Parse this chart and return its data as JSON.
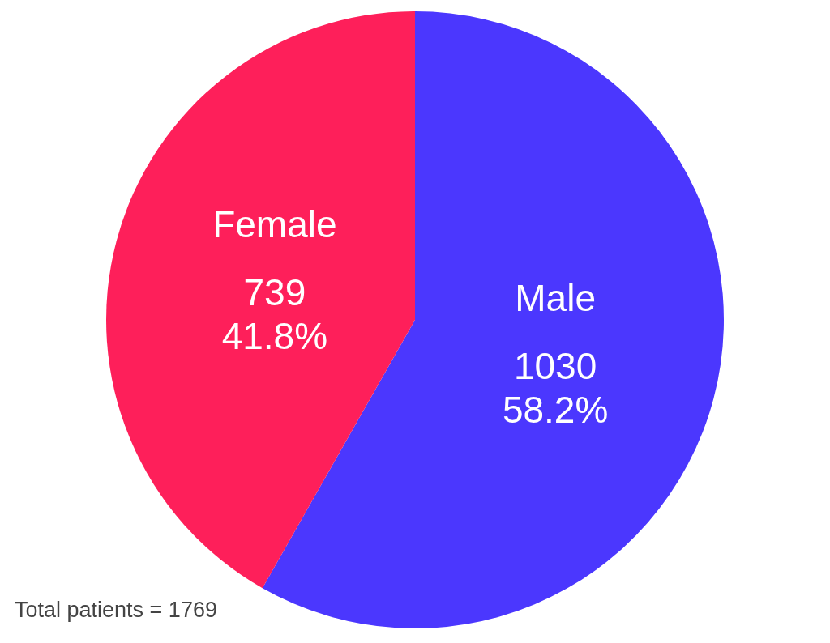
{
  "chart_data": {
    "type": "pie",
    "categories": [
      "Male",
      "Female"
    ],
    "values": [
      1030,
      739
    ],
    "colors": [
      "#4b37fe",
      "#fe1f5a"
    ],
    "value_labels": [
      "1030\n58.2%",
      "739\n41.8%"
    ],
    "annotations": [
      "Total patients = 1769"
    ],
    "legend": false
  }
}
